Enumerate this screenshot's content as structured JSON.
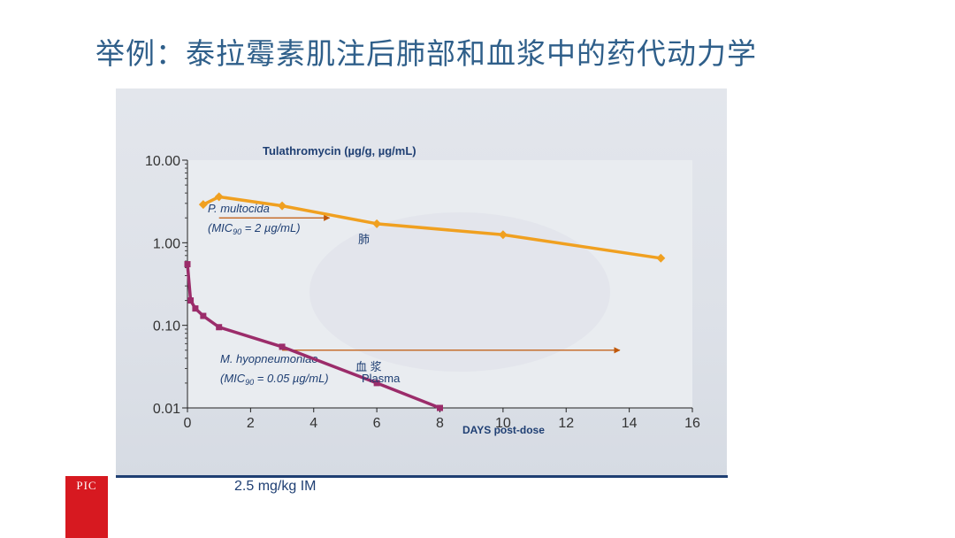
{
  "slide": {
    "title": "举例：泰拉霉素肌注后肺部和血浆中的药代动力学",
    "dose": "2.5 mg/kg IM",
    "logo": "PIC"
  },
  "colors": {
    "lung_series": "#f0a020",
    "plasma_series": "#9b2c6a",
    "mic_arrow": "#c0580a",
    "title": "#2f5f8a",
    "text_dark": "#1f3f73"
  },
  "chart_data": {
    "type": "line",
    "y_title": "Tulathromycin (µg/g, µg/mL)",
    "x_title": "DAYS post-dose",
    "y_scale": "log",
    "ylim": [
      0.01,
      10
    ],
    "xlim": [
      0,
      16
    ],
    "y_ticks": [
      "10.00",
      "1.00",
      "0.10",
      "0.01"
    ],
    "x_ticks": [
      "0",
      "2",
      "4",
      "6",
      "8",
      "10",
      "12",
      "14",
      "16"
    ],
    "grid": false,
    "series": [
      {
        "name": "肺",
        "x": [
          0.5,
          1,
          3,
          6,
          10,
          15
        ],
        "y": [
          2.9,
          3.6,
          2.8,
          1.7,
          1.25,
          0.65
        ]
      },
      {
        "name": "血 浆",
        "sub": "Plasma",
        "x": [
          0,
          0.1,
          0.25,
          0.5,
          1,
          3,
          6,
          8
        ],
        "y": [
          0.55,
          0.2,
          0.16,
          0.13,
          0.095,
          0.055,
          0.02,
          0.01
        ]
      }
    ],
    "annotations": [
      {
        "name": "P. multocida",
        "line2": "(MIC",
        "sub": "90",
        "line2b": " = 2 µg/mL)",
        "mic": 2.0,
        "arrow_from": 1,
        "arrow_to": 4.5
      },
      {
        "name": "M. hyopneumoniae",
        "line2": "(MIC",
        "sub": "90",
        "line2b": " = 0.05 µg/mL)",
        "mic": 0.05,
        "arrow_from": 3,
        "arrow_to": 13.7
      }
    ]
  }
}
